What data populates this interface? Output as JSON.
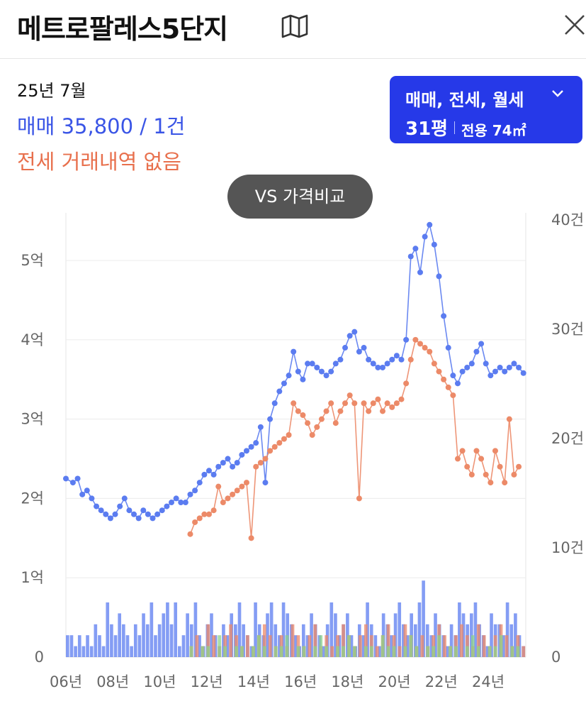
{
  "header": {
    "title": "메트로팔레스5단지"
  },
  "summary": {
    "period": "25년 7월",
    "sale": "매매 35,800 / 1건",
    "jeonse": "전세 거래내역 없음"
  },
  "filter": {
    "types": "매매, 전세, 월세",
    "size_pyeong": "31평",
    "size_area": "전용 74㎡"
  },
  "compare_button": "VS 가격비교",
  "colors": {
    "sale": "#5b7cf0",
    "jeonse": "#ec8a68",
    "monthly": "#8dd38a",
    "accent": "#2639e8"
  },
  "chart_data": {
    "type": "line",
    "x_start": 2006.0,
    "x_end": 2025.6,
    "y_left": {
      "min": 0,
      "max": 5.6,
      "ticks": [
        0,
        1,
        2,
        3,
        4,
        5
      ],
      "tick_labels": [
        "0",
        "1억",
        "2억",
        "3억",
        "4억",
        "5억"
      ]
    },
    "y_right": {
      "min": 0,
      "max": 40,
      "ticks": [
        0,
        10,
        20,
        30,
        40
      ],
      "tick_labels": [
        "0",
        "10건",
        "20건",
        "30건",
        "40건"
      ]
    },
    "x_ticks": [
      2006,
      2008,
      2010,
      2012,
      2014,
      2016,
      2018,
      2020,
      2022,
      2024
    ],
    "x_tick_labels": [
      "06년",
      "08년",
      "10년",
      "12년",
      "14년",
      "16년",
      "18년",
      "20년",
      "22년",
      "24년"
    ],
    "grid": true,
    "series": [
      {
        "points": [
          [
            2006.0,
            2.25
          ],
          [
            2006.3,
            2.2
          ],
          [
            2006.5,
            2.25
          ],
          [
            2006.7,
            2.05
          ],
          [
            2006.9,
            2.1
          ],
          [
            2007.1,
            2.0
          ],
          [
            2007.3,
            1.9
          ],
          [
            2007.5,
            1.85
          ],
          [
            2007.7,
            1.8
          ],
          [
            2007.9,
            1.75
          ],
          [
            2008.1,
            1.8
          ],
          [
            2008.3,
            1.9
          ],
          [
            2008.5,
            2.0
          ],
          [
            2008.7,
            1.85
          ],
          [
            2008.9,
            1.8
          ],
          [
            2009.1,
            1.75
          ],
          [
            2009.3,
            1.85
          ],
          [
            2009.5,
            1.8
          ],
          [
            2009.7,
            1.75
          ],
          [
            2009.9,
            1.8
          ],
          [
            2010.1,
            1.85
          ],
          [
            2010.3,
            1.9
          ],
          [
            2010.5,
            1.95
          ],
          [
            2010.7,
            2.0
          ],
          [
            2010.9,
            1.95
          ],
          [
            2011.1,
            1.95
          ],
          [
            2011.3,
            2.05
          ],
          [
            2011.5,
            2.1
          ],
          [
            2011.7,
            2.2
          ],
          [
            2011.9,
            2.3
          ],
          [
            2012.1,
            2.35
          ],
          [
            2012.3,
            2.3
          ],
          [
            2012.5,
            2.4
          ],
          [
            2012.7,
            2.45
          ],
          [
            2012.9,
            2.5
          ],
          [
            2013.1,
            2.4
          ],
          [
            2013.3,
            2.45
          ],
          [
            2013.5,
            2.55
          ],
          [
            2013.7,
            2.6
          ],
          [
            2013.9,
            2.65
          ],
          [
            2014.1,
            2.7
          ],
          [
            2014.3,
            2.9
          ],
          [
            2014.5,
            2.2
          ],
          [
            2014.7,
            3.0
          ],
          [
            2014.9,
            3.2
          ],
          [
            2015.1,
            3.35
          ],
          [
            2015.3,
            3.45
          ],
          [
            2015.5,
            3.55
          ],
          [
            2015.7,
            3.85
          ],
          [
            2015.9,
            3.6
          ],
          [
            2016.1,
            3.5
          ],
          [
            2016.3,
            3.7
          ],
          [
            2016.5,
            3.7
          ],
          [
            2016.7,
            3.65
          ],
          [
            2016.9,
            3.6
          ],
          [
            2017.1,
            3.55
          ],
          [
            2017.3,
            3.6
          ],
          [
            2017.5,
            3.7
          ],
          [
            2017.7,
            3.75
          ],
          [
            2017.9,
            3.9
          ],
          [
            2018.1,
            4.05
          ],
          [
            2018.3,
            4.1
          ],
          [
            2018.5,
            3.85
          ],
          [
            2018.7,
            3.9
          ],
          [
            2018.9,
            3.75
          ],
          [
            2019.1,
            3.7
          ],
          [
            2019.3,
            3.65
          ],
          [
            2019.5,
            3.65
          ],
          [
            2019.7,
            3.7
          ],
          [
            2019.9,
            3.75
          ],
          [
            2020.1,
            3.8
          ],
          [
            2020.3,
            3.75
          ],
          [
            2020.5,
            4.0
          ],
          [
            2020.7,
            5.05
          ],
          [
            2020.9,
            5.15
          ],
          [
            2021.1,
            4.85
          ],
          [
            2021.3,
            5.3
          ],
          [
            2021.5,
            5.45
          ],
          [
            2021.7,
            5.2
          ],
          [
            2021.9,
            4.8
          ],
          [
            2022.1,
            4.3
          ],
          [
            2022.3,
            3.9
          ],
          [
            2022.5,
            3.55
          ],
          [
            2022.7,
            3.45
          ],
          [
            2022.9,
            3.6
          ],
          [
            2023.1,
            3.65
          ],
          [
            2023.3,
            3.7
          ],
          [
            2023.5,
            3.85
          ],
          [
            2023.7,
            3.95
          ],
          [
            2023.9,
            3.7
          ],
          [
            2024.1,
            3.55
          ],
          [
            2024.3,
            3.6
          ],
          [
            2024.5,
            3.65
          ],
          [
            2024.7,
            3.6
          ],
          [
            2024.9,
            3.65
          ],
          [
            2025.1,
            3.7
          ],
          [
            2025.3,
            3.65
          ],
          [
            2025.5,
            3.58
          ]
        ]
      },
      {
        "points": [
          [
            2011.3,
            1.55
          ],
          [
            2011.5,
            1.7
          ],
          [
            2011.7,
            1.75
          ],
          [
            2011.9,
            1.8
          ],
          [
            2012.1,
            1.8
          ],
          [
            2012.3,
            1.85
          ],
          [
            2012.5,
            2.15
          ],
          [
            2012.7,
            1.95
          ],
          [
            2012.9,
            2.0
          ],
          [
            2013.1,
            2.05
          ],
          [
            2013.3,
            2.1
          ],
          [
            2013.5,
            2.15
          ],
          [
            2013.7,
            2.2
          ],
          [
            2013.9,
            1.5
          ],
          [
            2014.1,
            2.4
          ],
          [
            2014.3,
            2.45
          ],
          [
            2014.5,
            2.5
          ],
          [
            2014.7,
            2.6
          ],
          [
            2014.9,
            2.65
          ],
          [
            2015.1,
            2.7
          ],
          [
            2015.3,
            2.75
          ],
          [
            2015.5,
            2.8
          ],
          [
            2015.7,
            3.2
          ],
          [
            2015.9,
            3.1
          ],
          [
            2016.1,
            3.05
          ],
          [
            2016.3,
            2.95
          ],
          [
            2016.5,
            2.8
          ],
          [
            2016.7,
            2.9
          ],
          [
            2016.9,
            3.0
          ],
          [
            2017.1,
            3.1
          ],
          [
            2017.3,
            3.2
          ],
          [
            2017.5,
            2.95
          ],
          [
            2017.7,
            3.1
          ],
          [
            2017.9,
            3.2
          ],
          [
            2018.1,
            3.3
          ],
          [
            2018.3,
            3.2
          ],
          [
            2018.5,
            2.0
          ],
          [
            2018.7,
            3.2
          ],
          [
            2018.9,
            3.1
          ],
          [
            2019.1,
            3.2
          ],
          [
            2019.3,
            3.25
          ],
          [
            2019.5,
            3.1
          ],
          [
            2019.7,
            3.2
          ],
          [
            2019.9,
            3.15
          ],
          [
            2020.1,
            3.2
          ],
          [
            2020.3,
            3.25
          ],
          [
            2020.5,
            3.45
          ],
          [
            2020.7,
            3.75
          ],
          [
            2020.9,
            4.0
          ],
          [
            2021.1,
            3.95
          ],
          [
            2021.3,
            3.9
          ],
          [
            2021.5,
            3.85
          ],
          [
            2021.7,
            3.7
          ],
          [
            2021.9,
            3.6
          ],
          [
            2022.1,
            3.5
          ],
          [
            2022.3,
            3.4
          ],
          [
            2022.5,
            3.3
          ],
          [
            2022.7,
            2.5
          ],
          [
            2022.9,
            2.6
          ],
          [
            2023.1,
            2.4
          ],
          [
            2023.3,
            2.3
          ],
          [
            2023.5,
            2.6
          ],
          [
            2023.7,
            2.5
          ],
          [
            2023.9,
            2.3
          ],
          [
            2024.1,
            2.2
          ],
          [
            2024.3,
            2.6
          ],
          [
            2024.5,
            2.4
          ],
          [
            2024.7,
            2.2
          ],
          [
            2024.9,
            3.0
          ],
          [
            2025.1,
            2.3
          ],
          [
            2025.3,
            2.4
          ]
        ]
      }
    ],
    "volume": {
      "sale_counts": [
        2,
        2,
        1,
        2,
        1,
        2,
        1,
        3,
        2,
        1,
        5,
        3,
        2,
        4,
        3,
        2,
        1,
        3,
        2,
        4,
        3,
        5,
        2,
        3,
        4,
        5,
        3,
        5,
        1,
        2,
        4,
        3,
        5,
        2,
        1,
        3,
        4,
        2,
        1,
        3,
        2,
        4,
        3,
        5,
        3,
        2,
        1,
        5,
        3,
        2,
        4,
        5,
        3,
        2,
        5,
        4,
        3,
        2,
        1,
        3,
        2,
        4,
        3,
        2,
        1,
        3,
        5,
        4,
        2,
        3,
        4,
        2,
        1,
        3,
        2,
        5,
        3,
        2,
        1,
        4,
        3,
        2,
        4,
        5,
        3,
        2,
        4,
        3,
        5,
        7,
        3,
        2,
        4,
        3,
        2,
        1,
        3,
        2,
        5,
        4,
        3,
        4,
        5,
        3,
        2,
        1,
        4,
        3,
        3,
        2,
        5,
        3,
        4,
        2,
        1
      ],
      "jeonse_counts": [
        1,
        2,
        1,
        3,
        2,
        1,
        2,
        3,
        2,
        1,
        2,
        1,
        2,
        3,
        2,
        1,
        2,
        1,
        3,
        2,
        1,
        2,
        3,
        1,
        2,
        1,
        2,
        3,
        2,
        1,
        2,
        3,
        2,
        1,
        2,
        3,
        2,
        1,
        3,
        2,
        1,
        2,
        1,
        2,
        3,
        2,
        1,
        2,
        3,
        2,
        1,
        3,
        2,
        1,
        2,
        3,
        2,
        1,
        2,
        1
      ],
      "monthly_counts": [
        1,
        0,
        1,
        1,
        0,
        2,
        1,
        0,
        1,
        1,
        0,
        1,
        2,
        1,
        0,
        1,
        1,
        2,
        0,
        1,
        1,
        0,
        1,
        2,
        1,
        0,
        1,
        1,
        2,
        1,
        0,
        1,
        1,
        0,
        2,
        1,
        1,
        0,
        1,
        2,
        1,
        0,
        1,
        1,
        2,
        0,
        1,
        1,
        0,
        1,
        2,
        1,
        0,
        1,
        1,
        2,
        0,
        1,
        1,
        0
      ]
    }
  }
}
